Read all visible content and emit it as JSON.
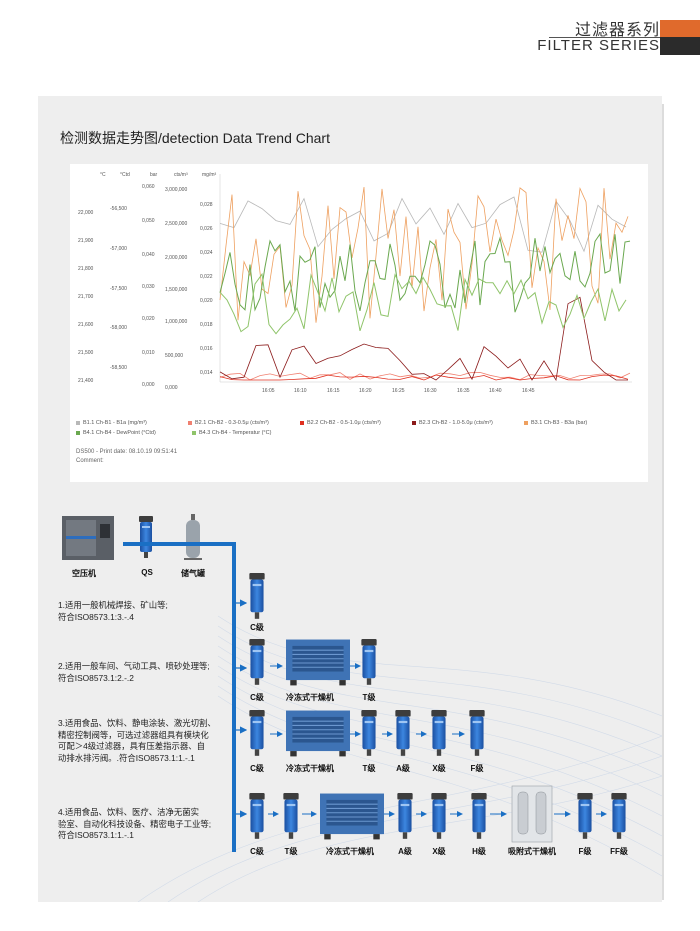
{
  "header": {
    "title_cn": "过滤器系列",
    "title_en": "FILTER SERIES"
  },
  "section_title": "检测数据走势图/detection Data Trend Chart",
  "chart_data": {
    "type": "line",
    "axes_units": [
      "°C",
      "°Ctd",
      "bar",
      "cts/m³",
      "mg/m³"
    ],
    "axis_c": {
      "ticks": [
        "22,000",
        "21,900",
        "21,800",
        "21,700",
        "21,600",
        "21,500",
        "21,400"
      ]
    },
    "axis_ctd": {
      "ticks": [
        "-56,500",
        "-57,000",
        "-57,500",
        "-58,000",
        "-58,500"
      ]
    },
    "axis_bar": {
      "ticks": [
        "0,060",
        "0,050",
        "0,040",
        "0,030",
        "0,020",
        "0,010",
        "0,000"
      ]
    },
    "axis_cts": {
      "ticks": [
        "3,000,000",
        "2,500,000",
        "2,000,000",
        "1,500,000",
        "1,000,000",
        "500,000",
        "0,000"
      ]
    },
    "axis_mg": {
      "ticks": [
        "0,028",
        "0,026",
        "0,024",
        "0,022",
        "0,020",
        "0,018",
        "0,016",
        "0,014"
      ]
    },
    "x_ticks": [
      "16:05",
      "16:10",
      "16:15",
      "16:20",
      "16:25",
      "16:30",
      "16:35",
      "16:40",
      "16:45"
    ],
    "series": [
      {
        "name": "B1.1 Ch-B1 - B1a (mg/m³)",
        "color": "#b8b8b8"
      },
      {
        "name": "B2.1 Ch-B2 - 0.3-0.5μ (cts/m³)",
        "color": "#f08070"
      },
      {
        "name": "B2.2 Ch-B2 - 0.5-1.0μ (cts/m³)",
        "color": "#e03020"
      },
      {
        "name": "B2.3 Ch-B2 - 1.0-5.0μ (cts/m³)",
        "color": "#8b1a1a"
      },
      {
        "name": "B3.1 Ch-B3 - B3a (bar)",
        "color": "#eea060"
      },
      {
        "name": "B4.1 Ch-B4 - DewPoint (°Ctd)",
        "color": "#6aa84f"
      },
      {
        "name": "B4.3 Ch-B4 - Temperatur (°C)",
        "color": "#8fc46a"
      }
    ]
  },
  "chart_footer": {
    "line1": "DS500 - Print date: 08.10.19 09:51:41",
    "line2": "Comment:"
  },
  "flow": {
    "top": {
      "compressor": "空压机",
      "qs": "QS",
      "tank": "储气罐"
    },
    "rows": [
      {
        "desc": [
          "1.适用一般机械焊接、矿山等;",
          "  符合ISO8573.1:3.-.4"
        ],
        "labels": [
          "C级"
        ]
      },
      {
        "desc": [
          "2.适用一般车间、气动工具、喷砂处理等;",
          "符合ISO8573.1:2.-.2"
        ],
        "labels": [
          "C级",
          "冷冻式干燥机",
          "T级"
        ]
      },
      {
        "desc": [
          "3.适用食品、饮料、静电涂装、激光切割、",
          "精密控制阀等，可选过滤器组具有模块化",
          "可配＞4级过滤器，具有压差指示器、自",
          "动排水排污阀。.符合ISO8573.1:1.-.1"
        ],
        "labels": [
          "C级",
          "冷冻式干燥机",
          "T级",
          "A级",
          "X级",
          "F级"
        ]
      },
      {
        "desc": [
          "4.适用食品、饮料、医疗、洁净无菌实",
          "验室、自动化科技设备、精密电子工业等;",
          "符合ISO8573.1:1.-.1"
        ],
        "labels": [
          "C级",
          "T级",
          "冷冻式干燥机",
          "A级",
          "X级",
          "H级",
          "吸附式干燥机",
          "F级",
          "FF级"
        ]
      }
    ]
  }
}
